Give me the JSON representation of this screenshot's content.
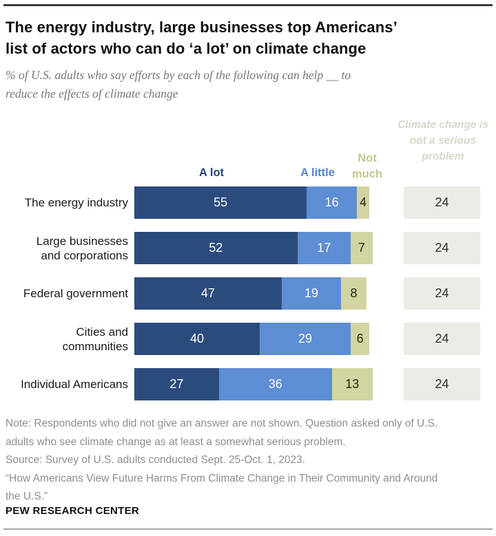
{
  "header": {
    "title_lines": [
      "The energy industry, large businesses top Americans’",
      "list of actors who can do ‘a lot’ on climate change"
    ],
    "subtitle_lines": [
      "% of U.S. adults who say efforts by each of the following can help __ to",
      "reduce the effects of climate change"
    ]
  },
  "legend": {
    "a_lot": {
      "label": "A lot",
      "color": "#24447c"
    },
    "a_little": {
      "label": "A little",
      "color": "#5586ce"
    },
    "not_much": {
      "label": "Not much",
      "color": "#c2c68e"
    },
    "not_serious": {
      "label": "Climate change is not a serious problem",
      "color": "#d9d6c8"
    }
  },
  "chart_data": {
    "type": "bar",
    "orientation": "horizontal",
    "stacked": true,
    "grid": false,
    "legend_position": "top",
    "x_max": 100,
    "categories": [
      "The energy industry",
      "Large businesses and corporations",
      "Federal government",
      "Cities and communities",
      "Individual Americans"
    ],
    "category_display_lines": [
      [
        "The energy industry"
      ],
      [
        "Large businesses",
        "and corporations"
      ],
      [
        "Federal government"
      ],
      [
        "Cities and",
        "communities"
      ],
      [
        "Individual Americans"
      ]
    ],
    "series": [
      {
        "name": "A lot",
        "color": "#2c4b7d",
        "label_color": "#ffffff",
        "values": [
          55,
          52,
          47,
          40,
          27
        ]
      },
      {
        "name": "A little",
        "color": "#5d8dd3",
        "label_color": "#ffffff",
        "values": [
          16,
          17,
          19,
          29,
          36
        ]
      },
      {
        "name": "Not much",
        "color": "#d2d4a2",
        "label_color": "#26260f",
        "values": [
          4,
          7,
          8,
          6,
          13
        ]
      },
      {
        "name": "Climate change is not a serious problem",
        "color": "#edebe5",
        "label_color": "#2e2e2e",
        "detached": true,
        "values": [
          24,
          24,
          24,
          24,
          24
        ]
      }
    ],
    "title": "The energy industry, large businesses top Americans’ list of actors who can do ‘a lot’ on climate change",
    "subtitle": "% of U.S. adults who say efforts by each of the following can help __ to reduce the effects of climate change"
  },
  "footer": {
    "note_lines": [
      "Note: Respondents who did not give an answer are not shown. Question asked only of U.S.",
      "adults who see climate change as at least a somewhat serious problem.",
      "Source: Survey of U.S. adults conducted Sept. 25-Oct. 1, 2023.",
      "“How Americans View Future Harms From Climate Change in Their Community and Around",
      "the U.S.”"
    ],
    "attribution": "PEW RESEARCH CENTER"
  }
}
